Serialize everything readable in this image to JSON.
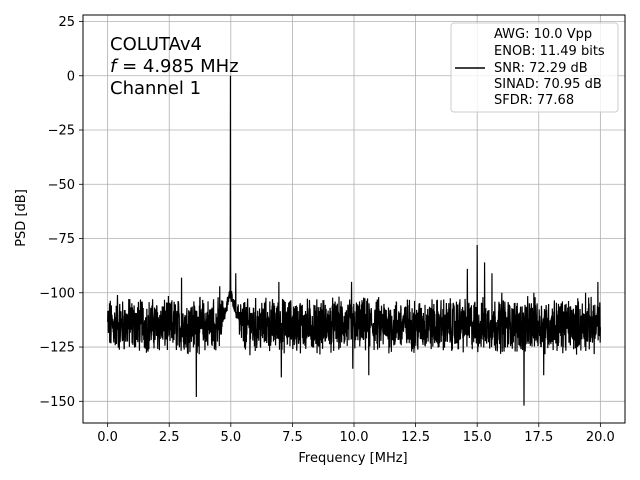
{
  "chart_data": {
    "type": "line",
    "xlabel": "Frequency [MHz]",
    "ylabel": "PSD [dB]",
    "xlim": [
      -1.0,
      21.0
    ],
    "ylim": [
      -160,
      28
    ],
    "xticks": [
      0.0,
      2.5,
      5.0,
      7.5,
      10.0,
      12.5,
      15.0,
      17.5,
      20.0
    ],
    "xtick_labels": [
      "0.0",
      "2.5",
      "5.0",
      "7.5",
      "10.0",
      "12.5",
      "15.0",
      "17.5",
      "20.0"
    ],
    "yticks": [
      25,
      0,
      -25,
      -50,
      -75,
      -100,
      -125,
      -150
    ],
    "ytick_labels": [
      "25",
      "0",
      "−25",
      "−50",
      "−75",
      "−100",
      "−125",
      "−150"
    ],
    "grid": true,
    "annotation": {
      "line1": "COLUTAv4",
      "line2_var": "f",
      "line2_rest": " = 4.985 MHz",
      "line3": "Channel 1"
    },
    "legend": {
      "position": "top-right",
      "lines": [
        "AWG: 10.0 Vpp",
        "ENOB: 11.49 bits",
        "SNR: 72.29 dB",
        "SINAD: 70.95 dB",
        "SFDR: 77.68"
      ]
    },
    "series": [
      {
        "color": "#000000",
        "noise_floor_db": -115,
        "noise_floor_range_db": [
          -125,
          -105
        ],
        "fundamental": {
          "x": 4.985,
          "y": 0.0
        },
        "spurs": [
          {
            "x": 0.4,
            "y": -101
          },
          {
            "x": 0.9,
            "y": -103
          },
          {
            "x": 1.4,
            "y": -104
          },
          {
            "x": 3.0,
            "y": -93
          },
          {
            "x": 3.6,
            "y": -148
          },
          {
            "x": 4.3,
            "y": -103
          },
          {
            "x": 4.55,
            "y": -97
          },
          {
            "x": 5.2,
            "y": -91
          },
          {
            "x": 6.95,
            "y": -95
          },
          {
            "x": 7.05,
            "y": -139
          },
          {
            "x": 9.9,
            "y": -95
          },
          {
            "x": 9.95,
            "y": -135
          },
          {
            "x": 10.6,
            "y": -138
          },
          {
            "x": 11.0,
            "y": -102
          },
          {
            "x": 14.3,
            "y": -103
          },
          {
            "x": 14.6,
            "y": -89
          },
          {
            "x": 15.0,
            "y": -78
          },
          {
            "x": 15.3,
            "y": -86
          },
          {
            "x": 15.6,
            "y": -91
          },
          {
            "x": 16.0,
            "y": -100
          },
          {
            "x": 16.9,
            "y": -152
          },
          {
            "x": 17.3,
            "y": -100
          },
          {
            "x": 17.7,
            "y": -138
          },
          {
            "x": 19.4,
            "y": -100
          },
          {
            "x": 19.9,
            "y": -95
          }
        ]
      }
    ]
  }
}
